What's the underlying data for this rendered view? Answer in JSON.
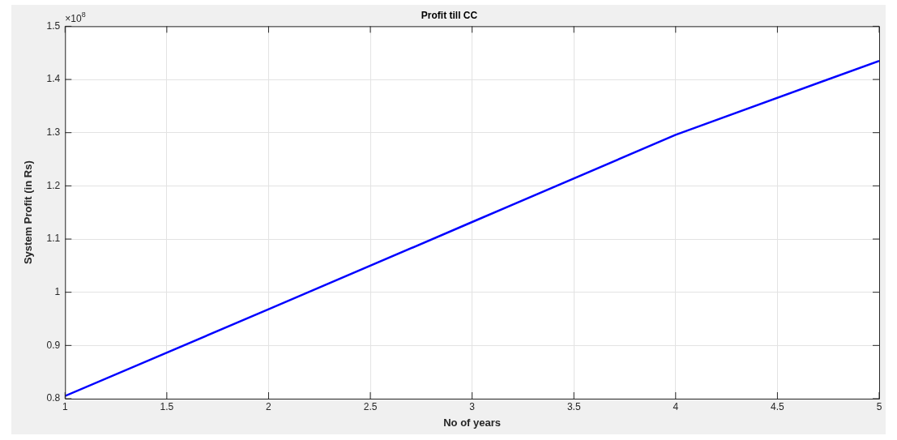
{
  "chart_data": {
    "type": "line",
    "title": "Profit till CC",
    "xlabel": "No of years",
    "ylabel": "System Profit (in Rs)",
    "annotations": [
      "×10$^{8}$"
    ],
    "x": [
      1,
      2,
      3,
      4,
      5
    ],
    "series": [
      {
        "color": "#0000ff",
        "values": [
          0.805,
          0.968,
          1.132,
          1.296,
          1.435
        ]
      }
    ],
    "xlim": [
      1,
      5
    ],
    "xticks": [
      1,
      1.5,
      2,
      2.5,
      3,
      3.5,
      4,
      4.5,
      5
    ],
    "ylim": [
      0.8,
      1.5
    ],
    "yticks": [
      0.8,
      0.9,
      1,
      1.1,
      1.2,
      1.3,
      1.4,
      1.5
    ],
    "grid": true,
    "legend": false,
    "marker": "none",
    "line_style": "solid"
  }
}
